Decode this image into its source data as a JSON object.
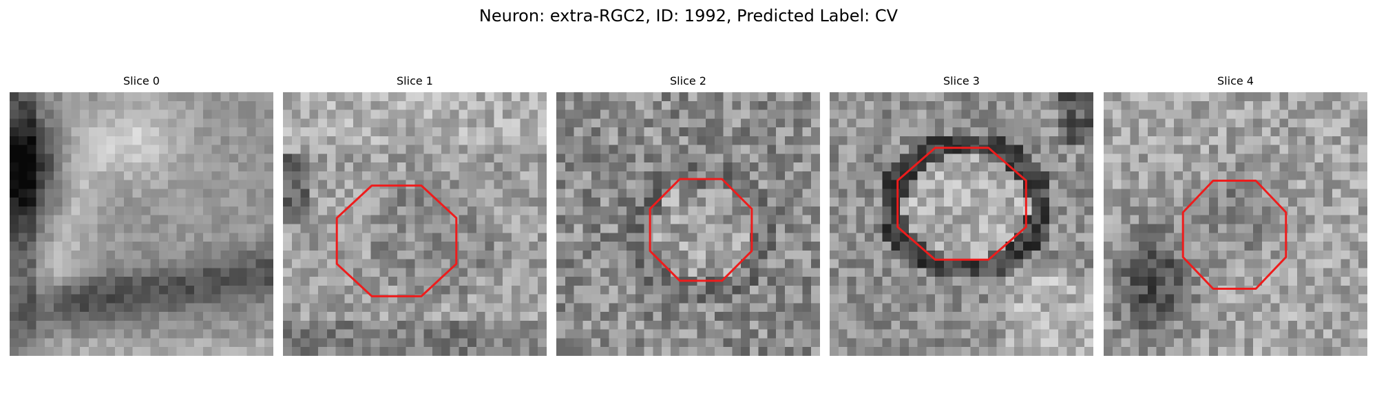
{
  "figure": {
    "title": "Neuron: extra-RGC2, ID: 1992, Predicted Label: CV"
  },
  "colors": {
    "contour": "#ee1c1c",
    "background": "#ffffff"
  },
  "panels": [
    {
      "title": "Slice 0",
      "pattern": "blurred-gray-texture-dark-left-edge-dark-band-bottom",
      "has_contour": false
    },
    {
      "title": "Slice 1",
      "pattern": "noisy-gray-texture",
      "has_contour": true,
      "contour_shape": "octagon"
    },
    {
      "title": "Slice 2",
      "pattern": "noisy-gray-texture",
      "has_contour": true,
      "contour_shape": "octagon"
    },
    {
      "title": "Slice 3",
      "pattern": "noisy-gray-texture-dark-ring-around-bright-center",
      "has_contour": true,
      "contour_shape": "octagon"
    },
    {
      "title": "Slice 4",
      "pattern": "noisy-gray-texture-dark-left-region",
      "has_contour": true,
      "contour_shape": "octagon"
    }
  ]
}
